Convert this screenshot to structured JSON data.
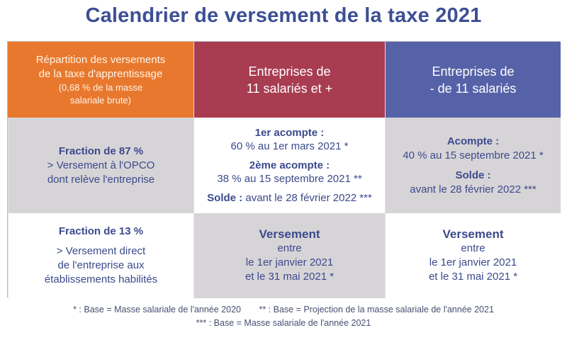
{
  "title": "Calendrier de versement de la taxe 2021",
  "header": {
    "col1": [
      "Répartition des versements",
      "de la taxe d'apprentissage",
      "(0,68 % de la masse",
      "salariale brute)"
    ],
    "col2": [
      "Entreprises de",
      "11 salariés et +"
    ],
    "col3": [
      "Entreprises de",
      "- de 11 salariés"
    ]
  },
  "row87": {
    "label_bold": "Fraction de 87 %",
    "label_lines": [
      "> Versement à l'OPCO",
      "dont relève l'entreprise"
    ],
    "big": {
      "a1_title": "1er acompte :",
      "a1_value": "60 % au 1er mars 2021 *",
      "a2_title": "2ème acompte :",
      "a2_value": "38 % au 15 septembre 2021 **",
      "solde_title": "Solde :",
      "solde_value": "avant le 28 février 2022 ***"
    },
    "small": {
      "acompte_title": "Acompte :",
      "acompte_value": "40 % au 15 septembre 2021 *",
      "solde_title": "Solde :",
      "solde_value": "avant le 28 février 2022 ***"
    }
  },
  "row13": {
    "label_bold": "Fraction de 13 %",
    "label_lines": [
      "> Versement direct",
      "de l'entreprise aux",
      "établissements habilités"
    ],
    "big": {
      "title": "Versement",
      "lines": [
        "entre",
        "le 1er janvier 2021",
        "et le 31 mai 2021 *"
      ]
    },
    "small": {
      "title": "Versement",
      "lines": [
        "entre",
        "le 1er janvier 2021",
        "et le 31 mai 2021 *"
      ]
    }
  },
  "notes": {
    "n1": "* : Base = Masse salariale de l'année 2020",
    "n2": "** : Base = Projection de la masse salariale de l'année 2021",
    "n3": "*** : Base = Masse salariale de l'année 2021"
  },
  "colors": {
    "orange": "#e8782d",
    "red": "#a83c50",
    "blue": "#5562a8",
    "grey": "#d7d4d7",
    "text": "#3b4a8c"
  }
}
